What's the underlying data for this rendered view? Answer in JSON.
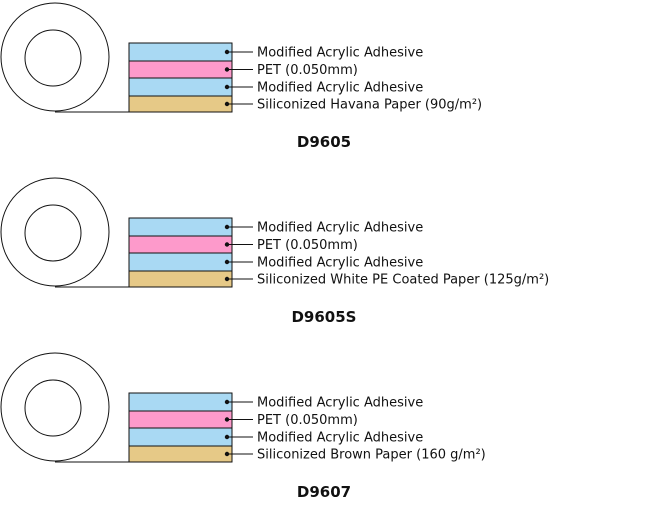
{
  "colors": {
    "adhesive": "#a9d9f3",
    "pet": "#fd9acb",
    "liner": "#e6c987",
    "stroke": "#111111"
  },
  "products": [
    {
      "name": "D9605",
      "layers": [
        {
          "type": "adhesive",
          "label": "Modified Acrylic Adhesive"
        },
        {
          "type": "pet",
          "label": "PET (0.050mm)"
        },
        {
          "type": "adhesive",
          "label": "Modified Acrylic Adhesive"
        },
        {
          "type": "liner",
          "label": "Siliconized Havana Paper (90g/m²)"
        }
      ]
    },
    {
      "name": "D9605S",
      "layers": [
        {
          "type": "adhesive",
          "label": "Modified Acrylic Adhesive"
        },
        {
          "type": "pet",
          "label": "PET (0.050mm)"
        },
        {
          "type": "adhesive",
          "label": "Modified Acrylic Adhesive"
        },
        {
          "type": "liner",
          "label": "Siliconized White PE Coated Paper (125g/m²)"
        }
      ]
    },
    {
      "name": "D9607",
      "layers": [
        {
          "type": "adhesive",
          "label": "Modified Acrylic Adhesive"
        },
        {
          "type": "pet",
          "label": "PET (0.050mm)"
        },
        {
          "type": "adhesive",
          "label": "Modified Acrylic Adhesive"
        },
        {
          "type": "liner",
          "label": "Siliconized Brown Paper (160 g/m²)"
        }
      ]
    }
  ]
}
